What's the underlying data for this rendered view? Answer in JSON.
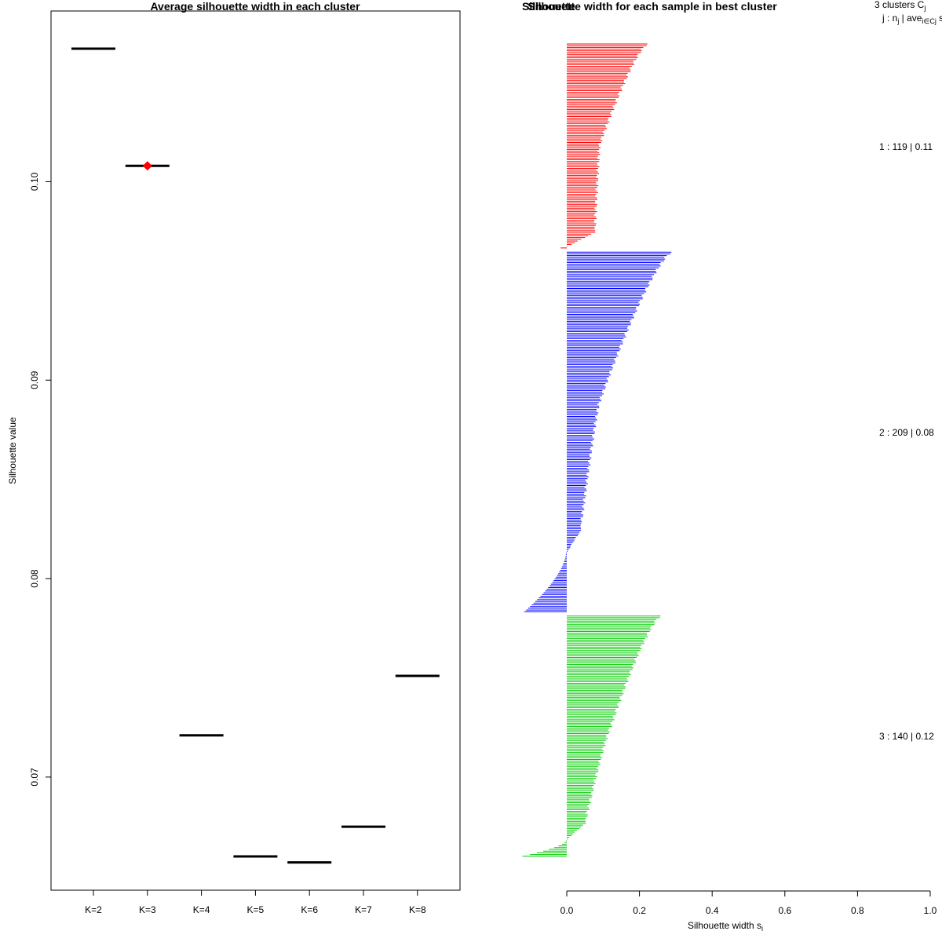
{
  "chart_data": [
    {
      "type": "line",
      "title": "Average silhouette width in each cluster",
      "xlabel": "",
      "ylabel": "Silhouette value",
      "ylim": [
        0.0643,
        0.1086
      ],
      "categories": [
        "K=2",
        "K=3",
        "K=4",
        "K=5",
        "K=6",
        "K=7",
        "K=8"
      ],
      "values": [
        0.1067,
        0.1008,
        0.0721,
        0.066,
        0.0657,
        0.0675,
        0.0751
      ],
      "highlight": {
        "category": "K=3",
        "color": "#ff0000",
        "marker": "diamond"
      },
      "y_ticks": [
        "0.07",
        "0.08",
        "0.09",
        "0.10"
      ],
      "y_tick_values": [
        0.07,
        0.08,
        0.09,
        0.1
      ]
    },
    {
      "type": "bar",
      "title": "Silhouette width for each sample in best cluster",
      "title_overlap": "Silhouette",
      "xlabel": "Silhouette width s",
      "xlabel_sub": "i",
      "xlim": [
        0,
        1
      ],
      "x_ticks": [
        "0.0",
        "0.2",
        "0.4",
        "0.6",
        "0.8",
        "1.0"
      ],
      "x_tick_values": [
        0,
        0.2,
        0.4,
        0.6,
        0.8,
        1.0
      ],
      "legend": {
        "header_line1": "3  clusters  C",
        "header_line1_sub": "j",
        "header_line2": "j :  n",
        "header_line2_sub": "j",
        "header_line2_rest": " | ave",
        "header_line2_sub2": "i∈Cj",
        "header_line2_tail": "  s"
      },
      "clusters": [
        {
          "id": 1,
          "n": 119,
          "label": "1 :  119  |  0.11",
          "color": "#ff0000",
          "line_color": "#ff0000",
          "max_width": 0.222,
          "mid_width": 0.09,
          "low_width": 0.075,
          "neg_count": 1,
          "neg_min": -0.015
        },
        {
          "id": 2,
          "n": 209,
          "label": "2 :  209  |  0.08",
          "color": "#0000ff",
          "line_color": "#0000ff",
          "max_width": 0.288,
          "mid_width": 0.09,
          "low_width": 0.03,
          "neg_count": 35,
          "neg_min": -0.115
        },
        {
          "id": 3,
          "n": 140,
          "label": "3 :  140  |  0.12",
          "color": "#00ff00",
          "line_color": "#00cc00",
          "max_width": 0.258,
          "mid_width": 0.12,
          "low_width": 0.04,
          "neg_count": 10,
          "neg_min": -0.12
        }
      ]
    }
  ]
}
